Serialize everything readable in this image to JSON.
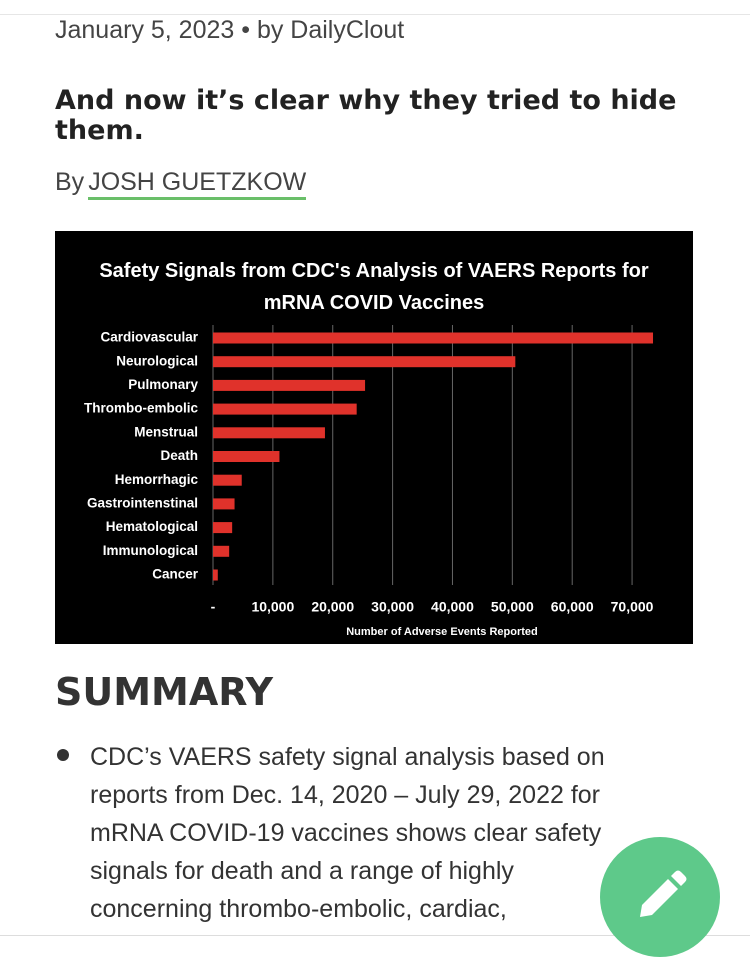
{
  "article": {
    "meta": "January 5, 2023 • by DailyClout",
    "headline": "And now it’s clear why they tried to hide them.",
    "byline_prefix": "By",
    "byline_author": "JOSH GUETZKOW"
  },
  "chart_data": {
    "type": "bar",
    "orientation": "horizontal",
    "title": "Safety Signals from CDC's Analysis of VAERS Reports for mRNA COVID Vaccines",
    "x_label": "Number of Adverse Events Reported",
    "categories": [
      "Cardiovascular",
      "Neurological",
      "Pulmonary",
      "Thrombo-embolic",
      "Menstrual",
      "Death",
      "Hemorrhagic",
      "Gastrointenstinal",
      "Hematological",
      "Immunological",
      "Cancer"
    ],
    "values": [
      73500,
      50500,
      25400,
      24000,
      18700,
      11100,
      4800,
      3600,
      3200,
      2700,
      800
    ],
    "color": "#e0322b",
    "xlim": [
      0,
      75000
    ],
    "xticks": [
      {
        "value": 0,
        "label": "-"
      },
      {
        "value": 10000,
        "label": "10,000"
      },
      {
        "value": 20000,
        "label": "20,000"
      },
      {
        "value": 30000,
        "label": "30,000"
      },
      {
        "value": 40000,
        "label": "40,000"
      },
      {
        "value": 50000,
        "label": "50,000"
      },
      {
        "value": 60000,
        "label": "60,000"
      },
      {
        "value": 70000,
        "label": "70,000"
      }
    ],
    "grid": true
  },
  "summary": {
    "heading": "SUMMARY",
    "bullet_lines": [
      "CDC’s VAERS safety signal analysis based on",
      "reports from Dec. 14, 2020 – July 29, 2022 for",
      "mRNA COVID-19 vaccines shows clear safety",
      "signals for death and a range of highly",
      "concerning thrombo-embolic, cardiac,"
    ]
  }
}
